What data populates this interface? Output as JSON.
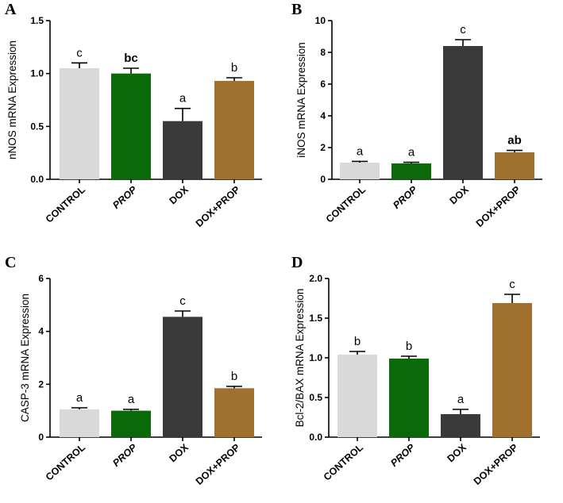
{
  "colors": {
    "CONTROL": "#d9d9d9",
    "PROP": "#0a6a0a",
    "DOX": "#3a3a3a",
    "DOX+PROP": "#a0702e"
  },
  "chart_data": [
    {
      "panel": "A",
      "type": "bar",
      "categories": [
        "CONTROL",
        "PROP",
        "DOX",
        "DOX+PROP"
      ],
      "values": [
        1.05,
        1.0,
        0.55,
        0.93
      ],
      "errors": [
        0.05,
        0.05,
        0.12,
        0.03
      ],
      "significance": [
        "c",
        "bc",
        "a",
        "b"
      ],
      "sig_bold": [
        false,
        true,
        false,
        false
      ],
      "ylabel": "nNOS mRNA Expression",
      "ylim": [
        0,
        1.5
      ],
      "yticks": [
        "0.0",
        "0.5",
        "1.0",
        "1.5"
      ]
    },
    {
      "panel": "B",
      "type": "bar",
      "categories": [
        "CONTROL",
        "PROP",
        "DOX",
        "DOX+PROP"
      ],
      "values": [
        1.05,
        1.0,
        8.4,
        1.7
      ],
      "errors": [
        0.08,
        0.07,
        0.4,
        0.12
      ],
      "significance": [
        "a",
        "a",
        "c",
        "ab"
      ],
      "sig_bold": [
        false,
        false,
        false,
        true
      ],
      "ylabel": "iNOS mRNA Expression",
      "ylim": [
        0,
        10
      ],
      "yticks": [
        "0",
        "2",
        "4",
        "6",
        "8",
        "10"
      ]
    },
    {
      "panel": "C",
      "type": "bar",
      "categories": [
        "CONTROL",
        "PROP",
        "DOX",
        "DOX+PROP"
      ],
      "values": [
        1.05,
        1.0,
        4.55,
        1.85
      ],
      "errors": [
        0.06,
        0.05,
        0.22,
        0.07
      ],
      "significance": [
        "a",
        "a",
        "c",
        "b"
      ],
      "sig_bold": [
        false,
        false,
        false,
        false
      ],
      "ylabel": "CASP-3 mRNA Expression",
      "ylim": [
        0,
        6
      ],
      "yticks": [
        "0",
        "2",
        "4",
        "6"
      ]
    },
    {
      "panel": "D",
      "type": "bar",
      "categories": [
        "CONTROL",
        "PROP",
        "DOX",
        "DOX+PROP"
      ],
      "values": [
        1.04,
        0.99,
        0.29,
        1.69
      ],
      "errors": [
        0.04,
        0.03,
        0.06,
        0.11
      ],
      "significance": [
        "b",
        "b",
        "a",
        "c"
      ],
      "sig_bold": [
        false,
        false,
        false,
        false
      ],
      "ylabel": "Bcl-2/BAX mRNA Expression",
      "ylim": [
        0,
        2.0
      ],
      "yticks": [
        "0.0",
        "0.5",
        "1.0",
        "1.5",
        "2.0"
      ]
    }
  ]
}
